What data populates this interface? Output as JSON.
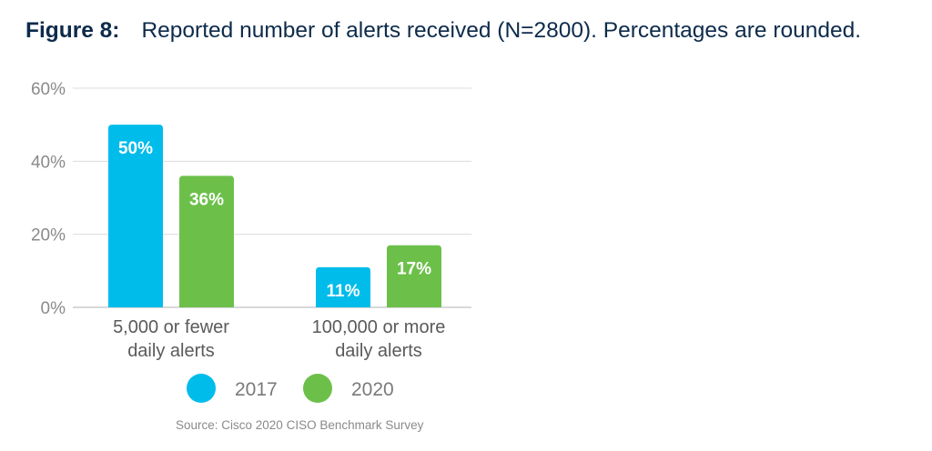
{
  "title": {
    "label": "Figure 8:",
    "text": "Reported number of alerts received (N=2800). Percentages are rounded."
  },
  "source": "Source: Cisco 2020 CISO Benchmark Survey",
  "colors": {
    "2017": "#00bceb",
    "2020": "#6cc04a",
    "grid": "#dcdcdc",
    "axis": "#b0b0b0"
  },
  "chart_data": {
    "type": "bar",
    "categories": [
      [
        "5,000 or fewer",
        "daily alerts"
      ],
      [
        "100,000 or more",
        "daily alerts"
      ]
    ],
    "series": [
      {
        "name": "2017",
        "values": [
          50,
          11
        ],
        "labels": [
          "50%",
          "11%"
        ]
      },
      {
        "name": "2020",
        "values": [
          36,
          17
        ],
        "labels": [
          "36%",
          "17%"
        ]
      }
    ],
    "ylim": [
      0,
      60
    ],
    "yticks": [
      0,
      20,
      40,
      60
    ],
    "ytick_labels": [
      "0%",
      "20%",
      "40%",
      "60%"
    ],
    "grid": true,
    "legend": "bottom"
  }
}
